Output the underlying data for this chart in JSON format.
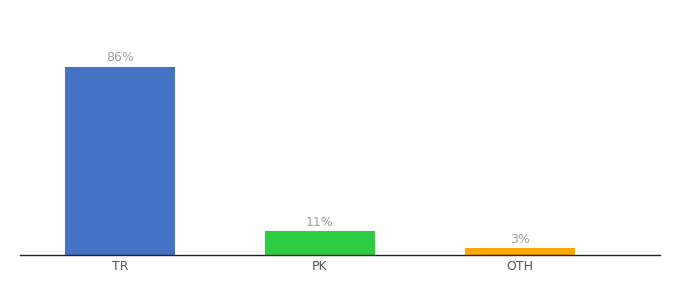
{
  "categories": [
    "TR",
    "PK",
    "OTH"
  ],
  "values": [
    86,
    11,
    3
  ],
  "labels": [
    "86%",
    "11%",
    "3%"
  ],
  "bar_colors": [
    "#4472C4",
    "#2ECC40",
    "#FFA500"
  ],
  "background_color": "#ffffff",
  "ylim": [
    0,
    100
  ],
  "label_color": "#a0a0a0",
  "label_fontsize": 9,
  "tick_fontsize": 9,
  "bar_width": 0.55,
  "x_positions": [
    1,
    2,
    3
  ],
  "xlim": [
    0.5,
    3.7
  ]
}
